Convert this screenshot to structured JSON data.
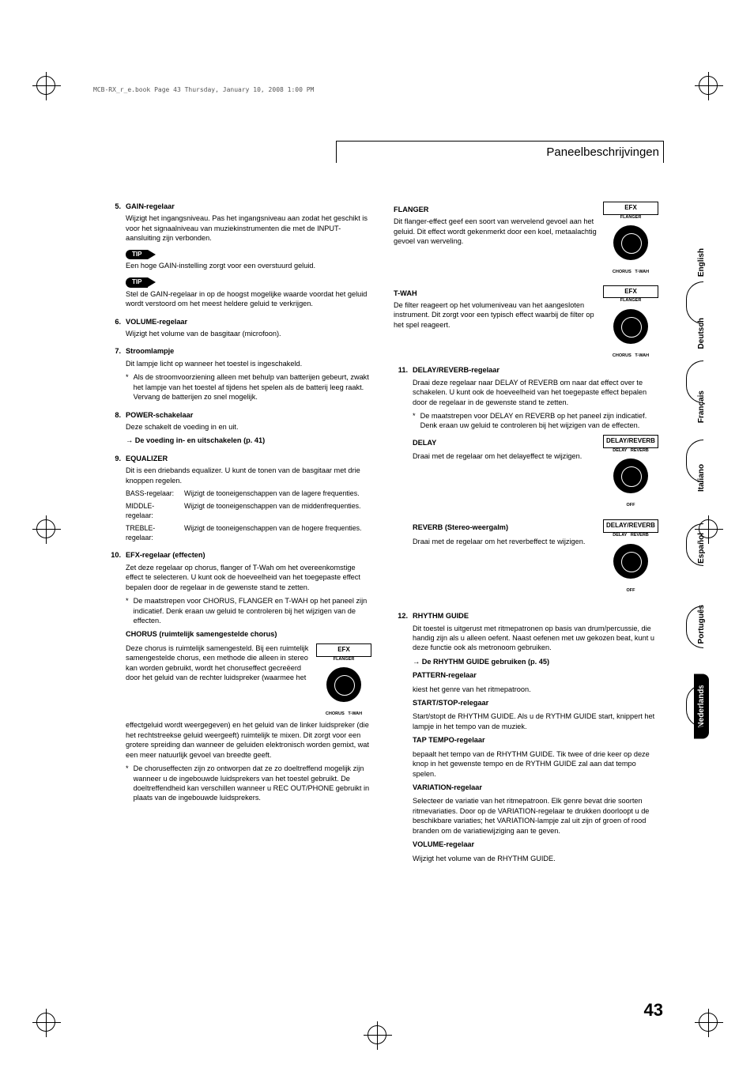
{
  "meta": {
    "book_line": "MCB-RX_r_e.book  Page 43  Thursday, January 10, 2008  1:00 PM"
  },
  "header": {
    "title": "Paneelbeschrijvingen"
  },
  "page_number": "43",
  "tip_label": "TIP",
  "knob_labels": {
    "efx": "EFX",
    "delay_reverb": "DELAY/REVERB",
    "flanger": "FLANGER",
    "chorus": "CHORUS",
    "twah": "T-WAH",
    "delay": "DELAY",
    "reverb": "REVERB",
    "off": "OFF"
  },
  "left": {
    "i5": {
      "title": "GAIN-regelaar",
      "body": "Wijzigt het ingangsniveau. Pas het ingangsniveau aan zodat het geschikt is voor het signaalniveau van muziekinstrumenten die met de INPUT-aansluiting zijn verbonden.",
      "tip1": "Een hoge GAIN-instelling zorgt voor een overstuurd geluid.",
      "tip2": "Stel de GAIN-regelaar in op de hoogst mogelijke waarde voordat het geluid wordt verstoord om het meest heldere geluid te verkrijgen."
    },
    "i6": {
      "title": "VOLUME-regelaar",
      "body": "Wijzigt het volume van de basgitaar (microfoon)."
    },
    "i7": {
      "title": "Stroomlampje",
      "body": "Dit lampje licht op wanneer het toestel is ingeschakeld.",
      "bullet": "Als de stroomvoorziening alleen met behulp van batterijen gebeurt, zwakt het lampje van het toestel af tijdens het spelen als de batterij leeg raakt. Vervang de batterijen zo snel mogelijk."
    },
    "i8": {
      "title": "POWER-schakelaar",
      "body": "Deze schakelt de voeding in en uit.",
      "ref": "→ De voeding in- en uitschakelen (p. 41)"
    },
    "i9": {
      "title": "EQUALIZER",
      "body": "Dit is een driebands equalizer. U kunt de tonen van de basgitaar met drie knoppen regelen.",
      "bass_l": "BASS-regelaar:",
      "bass": "Wijzigt de tooneigenschappen van de lagere frequenties.",
      "mid_l": "MIDDLE-regelaar:",
      "mid": "Wijzigt de tooneigenschappen van de middenfrequenties.",
      "treb_l": "TREBLE-regelaar:",
      "treb": "Wijzigt de tooneigenschappen van de hogere frequenties."
    },
    "i10": {
      "title": "EFX-regelaar (effecten)",
      "body": "Zet deze regelaar op chorus, flanger of T-Wah om het overeenkomstige effect te selecteren. U kunt ook de hoeveelheid van het toegepaste effect bepalen door de regelaar in de gewenste stand te zetten.",
      "bullet": "De maatstrepen voor CHORUS, FLANGER en T-WAH op het paneel zijn indicatief. Denk eraan uw geluid te controleren bij het wijzigen van de effecten.",
      "chorus_h": "CHORUS (ruimtelijk samengestelde chorus)",
      "chorus_p1": "Deze chorus is ruimtelijk samengesteld. Bij een ruimtelijk samengestelde chorus, een methode die alleen in stereo kan worden gebruikt, wordt het choruseffect gecreëerd door het geluid van de rechter luidspreker (waarmee het",
      "chorus_p2": "effectgeluid wordt weergegeven) en het geluid van de linker luidspreker (die het rechtstreekse geluid weergeeft) ruimtelijk te mixen. Dit zorgt voor een grotere spreiding dan wanneer de geluiden elektronisch worden gemixt, wat een meer natuurlijk gevoel van breedte geeft.",
      "chorus_bullet": "De choruseffecten zijn zo ontworpen dat ze zo doeltreffend mogelijk zijn wanneer u de ingebouwde luidsprekers van het toestel gebruikt. De doeltreffendheid kan verschillen wanneer u REC OUT/PHONE gebruikt in plaats van de ingebouwde luidsprekers."
    }
  },
  "right": {
    "flanger_h": "FLANGER",
    "flanger_p": "Dit flanger-effect geef een soort van wervelend gevoel aan het geluid. Dit effect wordt gekenmerkt door een koel, metaalachtig gevoel van werveling.",
    "twah_h": "T-WAH",
    "twah_p": "De filter reageert op het volumeniveau van het aangesloten instrument. Dit zorgt voor een typisch effect waarbij de filter op het spel reageert.",
    "i11": {
      "title": "DELAY/REVERB-regelaar",
      "body": "Draai deze regelaar naar DELAY of REVERB om naar dat effect over te schakelen. U kunt ook de hoeveelheid van het toegepaste effect bepalen door de regelaar in de gewenste stand te zetten.",
      "bullet": "De maatstrepen voor DELAY en REVERB op het paneel zijn indicatief. Denk eraan uw geluid te controleren bij het wijzigen van de effecten.",
      "delay_h": "DELAY",
      "delay_p": "Draai met de regelaar om het delayeffect te wijzigen.",
      "reverb_h": "REVERB (Stereo-weergalm)",
      "reverb_p": "Draai met de regelaar om het reverbeffect te wijzigen."
    },
    "i12": {
      "title": "RHYTHM GUIDE",
      "body": "Dit toestel is uitgerust met ritmepatronen op basis van drum/percussie, die handig zijn als u alleen oefent. Naast oefenen met uw gekozen beat, kunt u deze functie ook als metronoom gebruiken.",
      "ref": "→ De RHYTHM GUIDE gebruiken (p. 45)",
      "pattern_h": "PATTERN-regelaar",
      "pattern_p": "kiest het genre van het ritmepatroon.",
      "ss_h": "START/STOP-relegaar",
      "ss_p": "Start/stopt de RHYTHM GUIDE. Als u de RYTHM GUIDE start, knippert het lampje in het tempo van de muziek.",
      "tap_h": "TAP TEMPO-regelaar",
      "tap_p": "bepaalt het tempo van de RHYTHM GUIDE. Tik twee of drie keer op deze knop in het gewenste tempo en de RYTHM GUIDE zal aan dat tempo spelen.",
      "var_h": "VARIATION-regelaar",
      "var_p": "Selecteer de variatie van het ritmepatroon. Elk genre bevat drie soorten ritmevariaties. Door op de VARIATION-regelaar te drukken doorloopt u de beschikbare variaties; het VARIATION-lampje zal uit zijn of groen of rood branden om de variatiewijziging aan te geven.",
      "vol_h": "VOLUME-regelaar",
      "vol_p": "Wijzigt het volume van de RHYTHM GUIDE."
    }
  },
  "languages": [
    "English",
    "Deutsch",
    "Français",
    "Italiano",
    "Español",
    "Português",
    "Nederlands"
  ],
  "active_lang_index": 6
}
